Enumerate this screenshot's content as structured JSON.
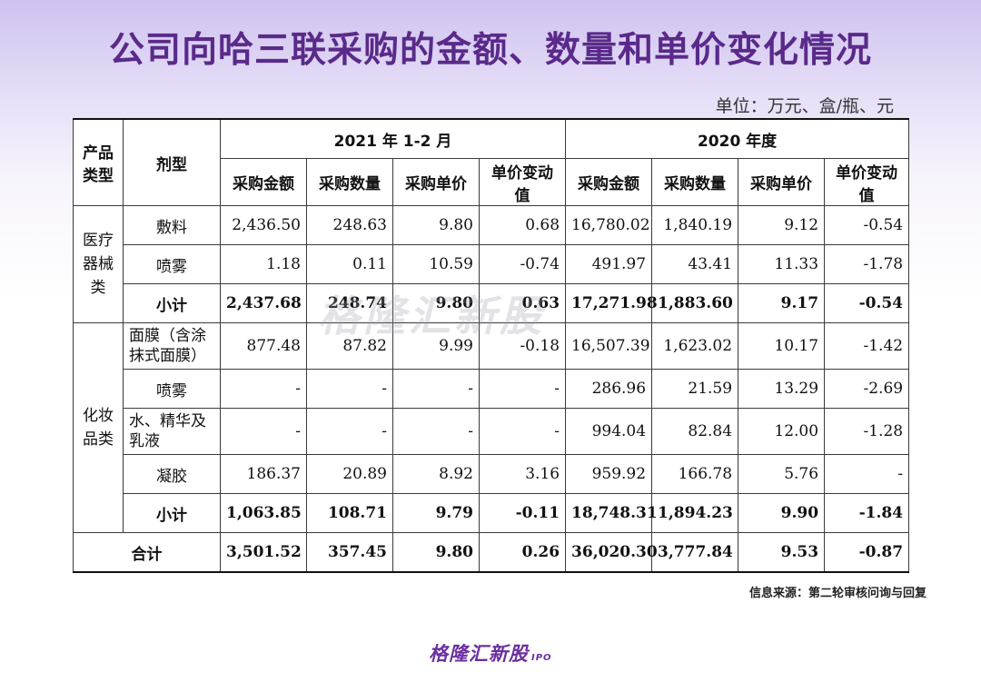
{
  "title": "公司向哈三联采购的金额、数量和单价变化情况",
  "unit_note": "单位：万元、盒/瓶、元",
  "watermark": "格隆汇新股",
  "source": "信息来源：第二轮审核问询与回复",
  "logo": {
    "text": "格隆汇新股",
    "sub": "IPO"
  },
  "header": {
    "product_type": "产品类型",
    "dosage_form": "剂型",
    "period_2021": "2021 年 1-2 月",
    "period_2020": "2020 年度",
    "cols": [
      "采购金额",
      "采购数量",
      "采购单价",
      "单价变动值",
      "采购金额",
      "采购数量",
      "采购单价",
      "单价变动值"
    ]
  },
  "groups": {
    "medical": {
      "name": "医疗器械类",
      "rows": [
        {
          "form": "敷料",
          "v": [
            "2,436.50",
            "248.63",
            "9.80",
            "0.68",
            "16,780.02",
            "1,840.19",
            "9.12",
            "-0.54"
          ]
        },
        {
          "form": "喷雾",
          "v": [
            "1.18",
            "0.11",
            "10.59",
            "-0.74",
            "491.97",
            "43.41",
            "11.33",
            "-1.78"
          ]
        }
      ],
      "subtotal": {
        "label": "小计",
        "v": [
          "2,437.68",
          "248.74",
          "9.80",
          "0.63",
          "17,271.98",
          "1,883.60",
          "9.17",
          "-0.54"
        ]
      }
    },
    "cosmetics": {
      "name": "化妆品类",
      "rows": [
        {
          "form": "面膜（含涂抹式面膜）",
          "v": [
            "877.48",
            "87.82",
            "9.99",
            "-0.18",
            "16,507.39",
            "1,623.02",
            "10.17",
            "-1.42"
          ]
        },
        {
          "form": "喷雾",
          "v": [
            "-",
            "-",
            "-",
            "-",
            "286.96",
            "21.59",
            "13.29",
            "-2.69"
          ]
        },
        {
          "form": "水、精华及乳液",
          "v": [
            "-",
            "-",
            "-",
            "-",
            "994.04",
            "82.84",
            "12.00",
            "-1.28"
          ]
        },
        {
          "form": "凝胶",
          "v": [
            "186.37",
            "20.89",
            "8.92",
            "3.16",
            "959.92",
            "166.78",
            "5.76",
            "-"
          ]
        }
      ],
      "subtotal": {
        "label": "小计",
        "v": [
          "1,063.85",
          "108.71",
          "9.79",
          "-0.11",
          "18,748.31",
          "1,894.23",
          "9.90",
          "-1.84"
        ]
      }
    }
  },
  "total": {
    "label": "合计",
    "v": [
      "3,501.52",
      "357.45",
      "9.80",
      "0.26",
      "36,020.30",
      "3,777.84",
      "9.53",
      "-0.87"
    ]
  }
}
